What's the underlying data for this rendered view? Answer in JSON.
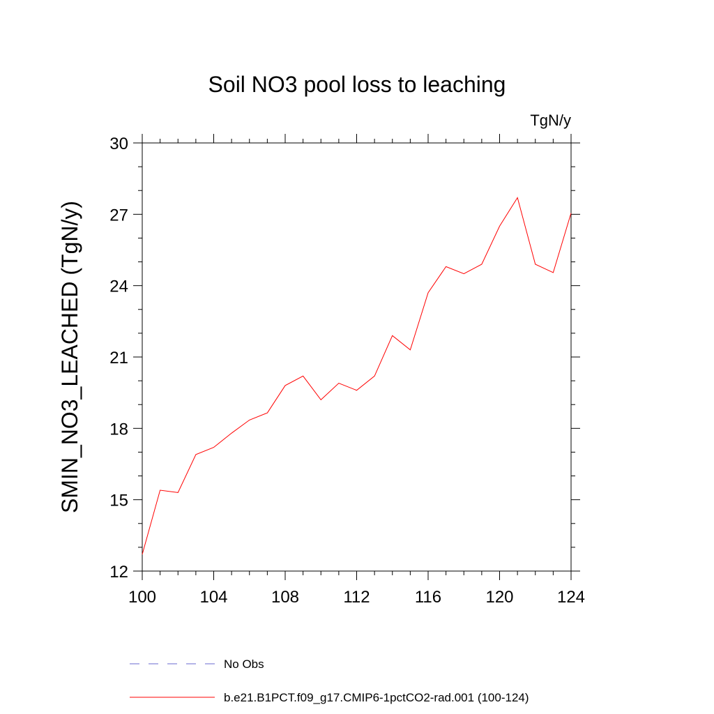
{
  "chart_data": {
    "type": "line",
    "title": "Soil NO3 pool loss to leaching",
    "units": "TgN/y",
    "xlabel": "",
    "ylabel": "SMIN_NO3_LEACHED  (TgN/y)",
    "xlim": [
      100,
      124
    ],
    "ylim": [
      12,
      30
    ],
    "xticks": [
      100,
      104,
      108,
      112,
      116,
      120,
      124
    ],
    "yticks": [
      12,
      15,
      18,
      21,
      24,
      27,
      30
    ],
    "grid": false,
    "legend_position": "bottom",
    "legend": [
      {
        "name": "No Obs",
        "color": "#6a6ad0",
        "style": "dashed"
      },
      {
        "name": "b.e21.B1PCT.f09_g17.CMIP6-1pctCO2-rad.001 (100-124)",
        "color": "#ff0000",
        "style": "solid"
      }
    ],
    "series": [
      {
        "name": "b.e21.B1PCT.f09_g17.CMIP6-1pctCO2-rad.001 (100-124)",
        "color": "#ff0000",
        "x": [
          100,
          101,
          102,
          103,
          104,
          105,
          106,
          107,
          108,
          109,
          110,
          111,
          112,
          113,
          114,
          115,
          116,
          117,
          118,
          119,
          120,
          121,
          122,
          123,
          124
        ],
        "y": [
          12.7,
          15.4,
          15.3,
          16.9,
          17.2,
          17.8,
          18.35,
          18.65,
          19.8,
          20.2,
          19.2,
          19.9,
          19.6,
          20.2,
          21.9,
          21.3,
          23.7,
          24.8,
          24.5,
          24.9,
          26.5,
          27.7,
          24.9,
          24.55,
          27.05
        ]
      }
    ]
  }
}
